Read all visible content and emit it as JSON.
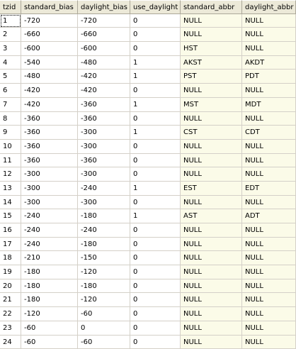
{
  "columns": [
    "tzid",
    "standard_bias",
    "daylight_bias",
    "use_daylight",
    "standard_abbr",
    "daylight_abbr"
  ],
  "rows": [
    [
      "1",
      "-720",
      "-720",
      "0",
      "NULL",
      "NULL"
    ],
    [
      "2",
      "-660",
      "-660",
      "0",
      "NULL",
      "NULL"
    ],
    [
      "3",
      "-600",
      "-600",
      "0",
      "HST",
      "NULL"
    ],
    [
      "4",
      "-540",
      "-480",
      "1",
      "AKST",
      "AKDT"
    ],
    [
      "5",
      "-480",
      "-420",
      "1",
      "PST",
      "PDT"
    ],
    [
      "6",
      "-420",
      "-420",
      "0",
      "NULL",
      "NULL"
    ],
    [
      "7",
      "-420",
      "-360",
      "1",
      "MST",
      "MDT"
    ],
    [
      "8",
      "-360",
      "-360",
      "0",
      "NULL",
      "NULL"
    ],
    [
      "9",
      "-360",
      "-300",
      "1",
      "CST",
      "CDT"
    ],
    [
      "10",
      "-360",
      "-300",
      "0",
      "NULL",
      "NULL"
    ],
    [
      "11",
      "-360",
      "-360",
      "0",
      "NULL",
      "NULL"
    ],
    [
      "12",
      "-300",
      "-300",
      "0",
      "NULL",
      "NULL"
    ],
    [
      "13",
      "-300",
      "-240",
      "1",
      "EST",
      "EDT"
    ],
    [
      "14",
      "-300",
      "-300",
      "0",
      "NULL",
      "NULL"
    ],
    [
      "15",
      "-240",
      "-180",
      "1",
      "AST",
      "ADT"
    ],
    [
      "16",
      "-240",
      "-240",
      "0",
      "NULL",
      "NULL"
    ],
    [
      "17",
      "-240",
      "-180",
      "0",
      "NULL",
      "NULL"
    ],
    [
      "18",
      "-210",
      "-150",
      "0",
      "NULL",
      "NULL"
    ],
    [
      "19",
      "-180",
      "-120",
      "0",
      "NULL",
      "NULL"
    ],
    [
      "20",
      "-180",
      "-180",
      "0",
      "NULL",
      "NULL"
    ],
    [
      "21",
      "-180",
      "-120",
      "0",
      "NULL",
      "NULL"
    ],
    [
      "22",
      "-120",
      "-60",
      "0",
      "NULL",
      "NULL"
    ],
    [
      "23",
      "-60",
      "0",
      "0",
      "NULL",
      "NULL"
    ],
    [
      "24",
      "-60",
      "-60",
      "0",
      "NULL",
      "NULL"
    ]
  ],
  "selected_row_index": 0
}
